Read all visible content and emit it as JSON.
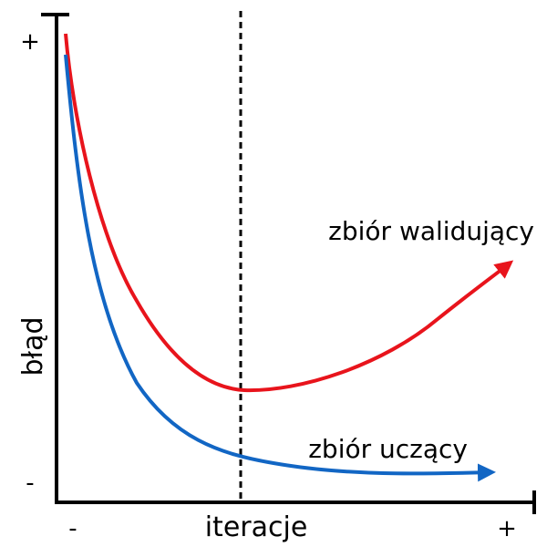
{
  "axes": {
    "x_label": "iteracje",
    "y_label": "błąd",
    "x_min_mark": "-",
    "x_max_mark": "+",
    "y_min_mark": "-",
    "y_max_mark": "+"
  },
  "curves": {
    "validation": {
      "label": "zbiór walidujący",
      "color": "#e8141c"
    },
    "training": {
      "label": "zbiór uczący",
      "color": "#1266c4"
    }
  },
  "marker_line": {
    "style": "dashed",
    "color": "#000000"
  }
}
